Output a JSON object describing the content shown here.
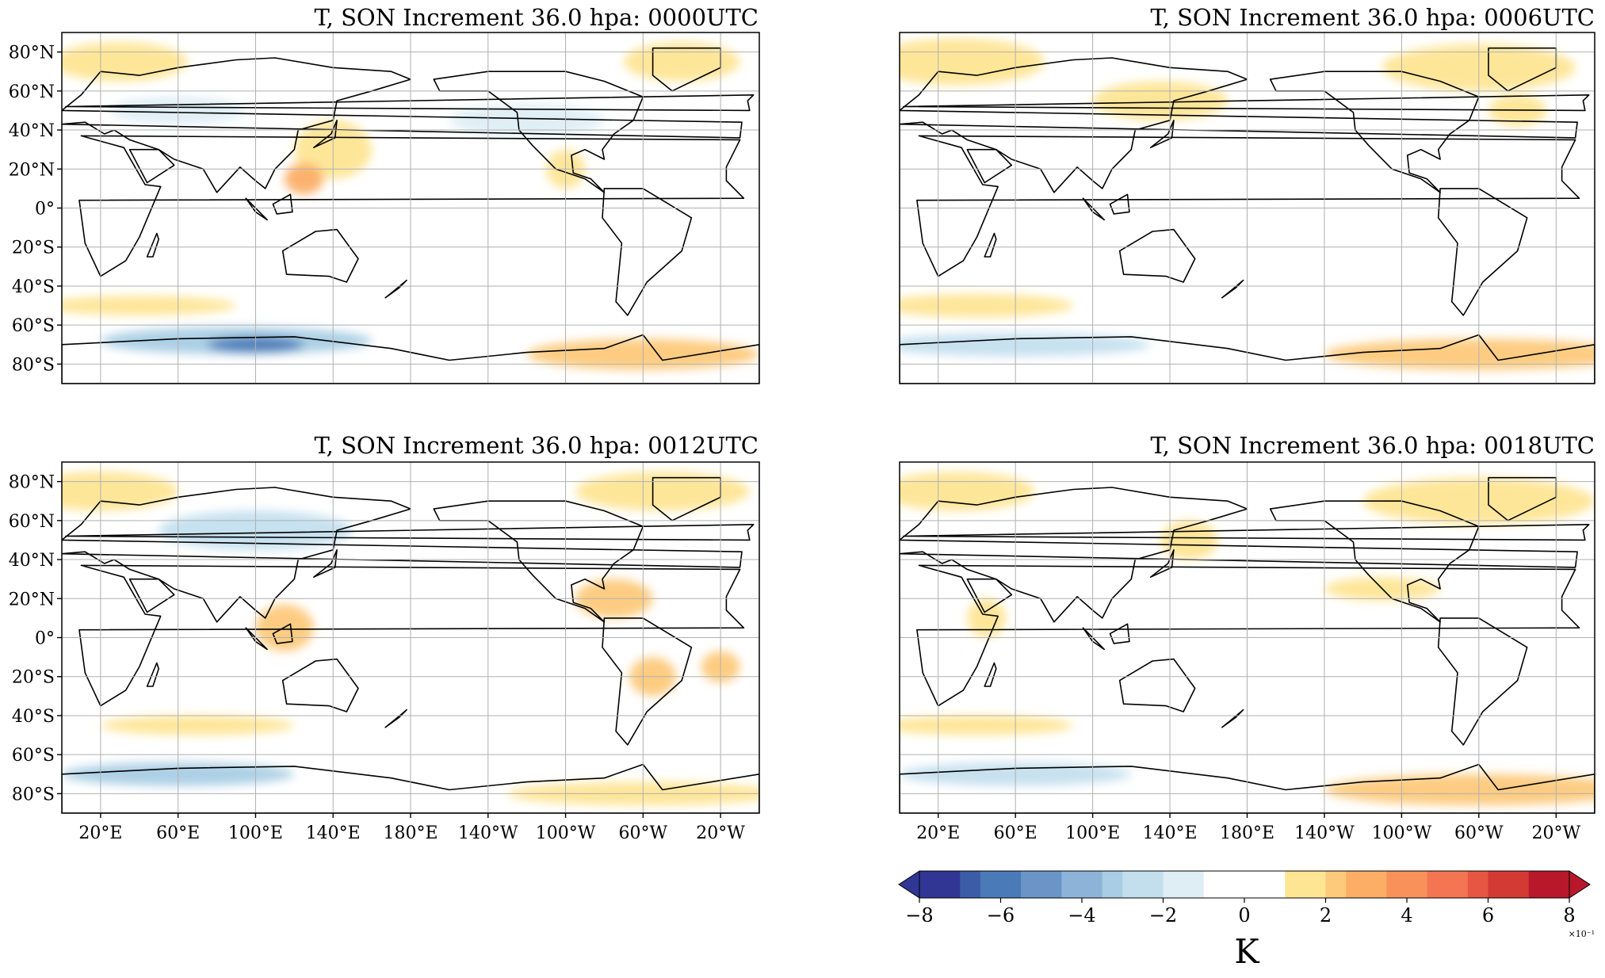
{
  "figure": {
    "unit_label": "K",
    "scale_note": "×10⁻¹"
  },
  "panels": [
    {
      "title": "T, SON Increment 36.0 hpa: 0000UTC",
      "lat_ticks": [
        "80°N",
        "60°N",
        "40°N",
        "20°N",
        "0°",
        "20°S",
        "40°S",
        "60°S",
        "80°S"
      ],
      "lon_ticks": [],
      "blobs": [
        {
          "lon": 30,
          "lat": 75,
          "rx": 35,
          "ry": 10,
          "level": 1
        },
        {
          "lon": -40,
          "lat": 75,
          "rx": 30,
          "ry": 10,
          "level": 1
        },
        {
          "lon": 60,
          "lat": 50,
          "rx": 35,
          "ry": 7,
          "level": -1
        },
        {
          "lon": 140,
          "lat": 30,
          "rx": 20,
          "ry": 15,
          "level": 1
        },
        {
          "lon": 125,
          "lat": 15,
          "rx": 10,
          "ry": 8,
          "level": 3
        },
        {
          "lon": -100,
          "lat": 20,
          "rx": 10,
          "ry": 10,
          "level": 1
        },
        {
          "lon": -120,
          "lat": 45,
          "rx": 40,
          "ry": 8,
          "level": -0.6
        },
        {
          "lon": 40,
          "lat": -50,
          "rx": 50,
          "ry": 5,
          "level": 1
        },
        {
          "lon": 90,
          "lat": -68,
          "rx": 70,
          "ry": 7,
          "level": -3
        },
        {
          "lon": 100,
          "lat": -70,
          "rx": 25,
          "ry": 4,
          "level": -6
        },
        {
          "lon": -60,
          "lat": -75,
          "rx": 60,
          "ry": 8,
          "level": 1.5
        }
      ]
    },
    {
      "title": "T, SON Increment 36.0 hpa: 0006UTC",
      "lat_ticks": [],
      "lon_ticks": [],
      "blobs": [
        {
          "lon": 30,
          "lat": 75,
          "rx": 45,
          "ry": 12,
          "level": 1
        },
        {
          "lon": -60,
          "lat": 72,
          "rx": 50,
          "ry": 12,
          "level": 1
        },
        {
          "lon": 135,
          "lat": 55,
          "rx": 35,
          "ry": 10,
          "level": 1
        },
        {
          "lon": -40,
          "lat": 50,
          "rx": 15,
          "ry": 8,
          "level": 1
        },
        {
          "lon": 40,
          "lat": -50,
          "rx": 50,
          "ry": 6,
          "level": 1
        },
        {
          "lon": 60,
          "lat": -70,
          "rx": 70,
          "ry": 6,
          "level": -2
        },
        {
          "lon": -60,
          "lat": -75,
          "rx": 80,
          "ry": 8,
          "level": 1.5
        }
      ]
    },
    {
      "title": "T, SON Increment 36.0 hpa: 0012UTC",
      "lat_ticks": [
        "80°N",
        "60°N",
        "40°N",
        "20°N",
        "0°",
        "20°S",
        "40°S",
        "60°S",
        "80°S"
      ],
      "lon_ticks": [
        "20°E",
        "60°E",
        "100°E",
        "140°E",
        "180°E",
        "140°W",
        "100°W",
        "60°W",
        "20°W"
      ],
      "blobs": [
        {
          "lon": 20,
          "lat": 75,
          "rx": 40,
          "ry": 10,
          "level": 1
        },
        {
          "lon": -50,
          "lat": 75,
          "rx": 45,
          "ry": 10,
          "level": 1
        },
        {
          "lon": 100,
          "lat": 55,
          "rx": 50,
          "ry": 10,
          "level": -1.5
        },
        {
          "lon": 115,
          "lat": 5,
          "rx": 15,
          "ry": 12,
          "level": 2
        },
        {
          "lon": -75,
          "lat": 20,
          "rx": 20,
          "ry": 10,
          "level": 2
        },
        {
          "lon": -55,
          "lat": -20,
          "rx": 12,
          "ry": 10,
          "level": 2
        },
        {
          "lon": -20,
          "lat": -15,
          "rx": 10,
          "ry": 8,
          "level": 1.5
        },
        {
          "lon": 70,
          "lat": -45,
          "rx": 50,
          "ry": 5,
          "level": 1
        },
        {
          "lon": 60,
          "lat": -70,
          "rx": 60,
          "ry": 6,
          "level": -3
        },
        {
          "lon": -60,
          "lat": -80,
          "rx": 70,
          "ry": 6,
          "level": 1
        }
      ]
    },
    {
      "title": "T, SON Increment 36.0 hpa: 0018UTC",
      "lat_ticks": [],
      "lon_ticks": [
        "20°E",
        "60°E",
        "100°E",
        "140°E",
        "180°E",
        "140°W",
        "100°W",
        "60°W",
        "20°W"
      ],
      "blobs": [
        {
          "lon": 30,
          "lat": 75,
          "rx": 40,
          "ry": 10,
          "level": 1
        },
        {
          "lon": -60,
          "lat": 70,
          "rx": 60,
          "ry": 12,
          "level": 1
        },
        {
          "lon": 150,
          "lat": 50,
          "rx": 15,
          "ry": 10,
          "level": 1
        },
        {
          "lon": 45,
          "lat": 10,
          "rx": 10,
          "ry": 10,
          "level": 1
        },
        {
          "lon": -110,
          "lat": 25,
          "rx": 30,
          "ry": 6,
          "level": 1
        },
        {
          "lon": 40,
          "lat": -45,
          "rx": 50,
          "ry": 5,
          "level": 1
        },
        {
          "lon": 60,
          "lat": -70,
          "rx": 60,
          "ry": 6,
          "level": -2
        },
        {
          "lon": -60,
          "lat": -78,
          "rx": 80,
          "ry": 8,
          "level": 2
        }
      ]
    }
  ],
  "colorbar": {
    "min": -8,
    "max": 8,
    "step": 1,
    "tick_values": [
      -8,
      -6,
      -4,
      -2,
      0,
      2,
      4,
      6,
      8
    ],
    "tick_labels": [
      "−8",
      "−6",
      "−4",
      "−2",
      "0",
      "2",
      "4",
      "6",
      "8"
    ],
    "colors_negative": [
      "#313695",
      "#3c5ca7",
      "#4a7ab8",
      "#6b95c6",
      "#8db4d8",
      "#a8cde4",
      "#c3dfee",
      "#deeef4"
    ],
    "color_zero": "#ffffff",
    "colors_positive": [
      "#fee594",
      "#fdc97b",
      "#fcae67",
      "#f8915a",
      "#f47551",
      "#e65642",
      "#d43a34",
      "#b8182a"
    ]
  },
  "map": {
    "land_outline_color": "#000000",
    "grid_color": "#b0b0b0"
  }
}
